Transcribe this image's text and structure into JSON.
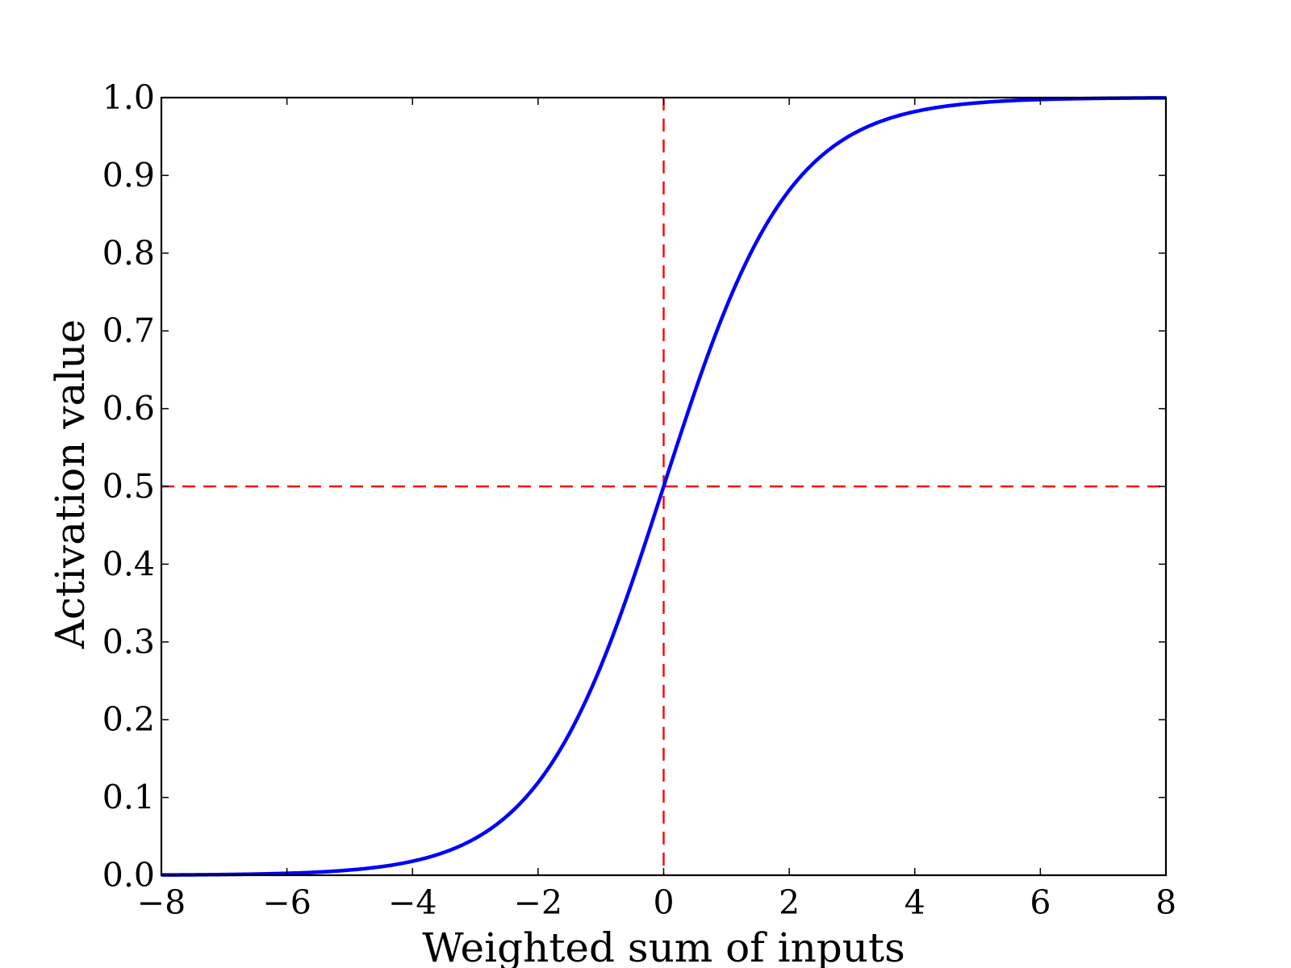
{
  "chart_data": {
    "type": "line",
    "title": "",
    "xlabel": "Weighted sum of inputs",
    "ylabel": "Activation value",
    "xlim": [
      -8,
      8
    ],
    "ylim": [
      0.0,
      1.0
    ],
    "x_ticks": [
      -8,
      -6,
      -4,
      -2,
      0,
      2,
      4,
      6,
      8
    ],
    "x_tick_labels": [
      "−8",
      "−6",
      "−4",
      "−2",
      "0",
      "2",
      "4",
      "6",
      "8"
    ],
    "y_ticks": [
      0.0,
      0.1,
      0.2,
      0.3,
      0.4,
      0.5,
      0.6,
      0.7,
      0.8,
      0.9,
      1.0
    ],
    "y_tick_labels": [
      "0.0",
      "0.1",
      "0.2",
      "0.3",
      "0.4",
      "0.5",
      "0.6",
      "0.7",
      "0.8",
      "0.9",
      "1.0"
    ],
    "grid": false,
    "series": [
      {
        "function": "sigmoid",
        "color": "#0000ff",
        "x": [
          -8,
          -7,
          -6,
          -5,
          -4,
          -3,
          -2,
          -1,
          0,
          1,
          2,
          3,
          4,
          5,
          6,
          7,
          8
        ],
        "y": [
          0.0003,
          0.0009,
          0.0025,
          0.0067,
          0.018,
          0.047,
          0.119,
          0.269,
          0.5,
          0.731,
          0.881,
          0.953,
          0.982,
          0.9933,
          0.9975,
          0.9991,
          0.9997
        ]
      }
    ],
    "reference_lines": [
      {
        "orientation": "vertical",
        "value": 0,
        "color": "#ff0000",
        "style": "dashed"
      },
      {
        "orientation": "horizontal",
        "value": 0.5,
        "color": "#ff0000",
        "style": "dashed"
      }
    ]
  }
}
